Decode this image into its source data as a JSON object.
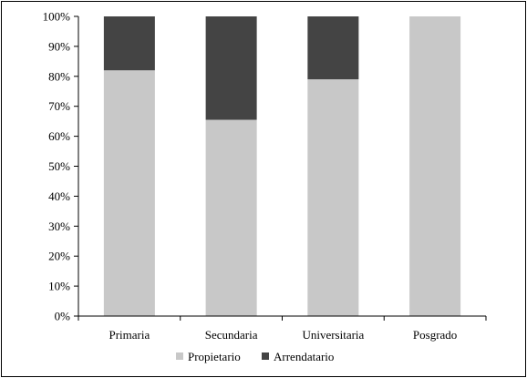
{
  "chart_data": {
    "type": "bar",
    "stacked": true,
    "categories": [
      "Primaria",
      "Secundaria",
      "Universitaria",
      "Posgrado"
    ],
    "series": [
      {
        "name": "Propietario",
        "values": [
          82,
          65.5,
          79,
          100
        ]
      },
      {
        "name": "Arrendatario",
        "values": [
          18,
          34.5,
          21,
          0
        ]
      }
    ],
    "y_ticks": [
      "0%",
      "10%",
      "20%",
      "30%",
      "40%",
      "50%",
      "60%",
      "70%",
      "80%",
      "90%",
      "100%"
    ],
    "ylim": [
      0,
      100
    ],
    "grid": false,
    "legend_position": "bottom",
    "colors": {
      "Propietario": "#c8c8c8",
      "Arrendatario": "#444444"
    }
  }
}
